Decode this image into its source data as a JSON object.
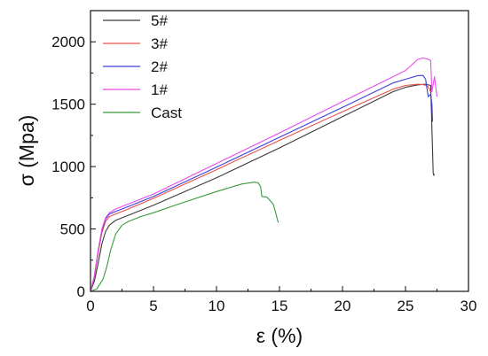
{
  "chart_data": {
    "type": "line",
    "xlabel": "ε (%)",
    "ylabel": "σ (Mpa)",
    "xlim": [
      0,
      30
    ],
    "ylim": [
      0,
      2250
    ],
    "x_ticks": [
      0,
      5,
      10,
      15,
      20,
      25,
      30
    ],
    "y_ticks": [
      0,
      500,
      1000,
      1500,
      2000
    ],
    "grid": false,
    "legend_position": "top-left",
    "series": [
      {
        "name": "5#",
        "color": "#3a3a3a",
        "x": [
          0,
          0.3,
          0.6,
          0.9,
          1.2,
          1.5,
          2.0,
          3,
          5,
          10,
          15,
          20,
          24,
          25,
          26,
          26.6,
          27.0,
          27.1,
          27.2,
          27.25,
          27.3
        ],
        "y": [
          0,
          80,
          220,
          380,
          480,
          530,
          570,
          610,
          690,
          910,
          1150,
          1400,
          1600,
          1635,
          1655,
          1660,
          1650,
          1300,
          950,
          930,
          940
        ]
      },
      {
        "name": "3#",
        "color": "#e8504a",
        "x": [
          0,
          0.3,
          0.6,
          0.9,
          1.2,
          1.5,
          2.0,
          3,
          5,
          10,
          15,
          20,
          24,
          25,
          26,
          26.5,
          26.8,
          27.0
        ],
        "y": [
          0,
          110,
          300,
          470,
          560,
          600,
          620,
          660,
          745,
          975,
          1210,
          1440,
          1620,
          1650,
          1660,
          1655,
          1640,
          1600
        ]
      },
      {
        "name": "2#",
        "color": "#3d3dd8",
        "x": [
          0,
          0.3,
          0.6,
          0.9,
          1.2,
          1.5,
          2.0,
          3,
          5,
          10,
          15,
          20,
          24,
          25,
          26,
          26.4,
          26.6,
          26.8,
          27.0,
          27.1,
          27.15
        ],
        "y": [
          0,
          120,
          320,
          490,
          580,
          620,
          640,
          680,
          760,
          995,
          1235,
          1475,
          1670,
          1700,
          1730,
          1730,
          1700,
          1560,
          1580,
          1500,
          1360
        ]
      },
      {
        "name": "1#",
        "color": "#e84ae8",
        "x": [
          0,
          0.3,
          0.6,
          0.9,
          1.2,
          1.5,
          2.0,
          3,
          5,
          10,
          15,
          20,
          24,
          25,
          26,
          26.4,
          26.8,
          27.0,
          27.1,
          27.3,
          27.5
        ],
        "y": [
          0,
          120,
          320,
          500,
          590,
          630,
          660,
          700,
          780,
          1025,
          1270,
          1520,
          1720,
          1770,
          1860,
          1870,
          1860,
          1850,
          1600,
          1720,
          1560
        ]
      },
      {
        "name": "Cast",
        "color": "#3a9a3a",
        "x": [
          0,
          0.5,
          1.0,
          1.3,
          1.6,
          2.0,
          2.5,
          3,
          4,
          5,
          7,
          10,
          12,
          13,
          13.3,
          13.5,
          13.6,
          14,
          14.5,
          14.7,
          14.9
        ],
        "y": [
          0,
          20,
          100,
          200,
          330,
          460,
          530,
          560,
          600,
          630,
          700,
          800,
          860,
          875,
          870,
          840,
          760,
          755,
          700,
          630,
          550
        ]
      }
    ]
  }
}
